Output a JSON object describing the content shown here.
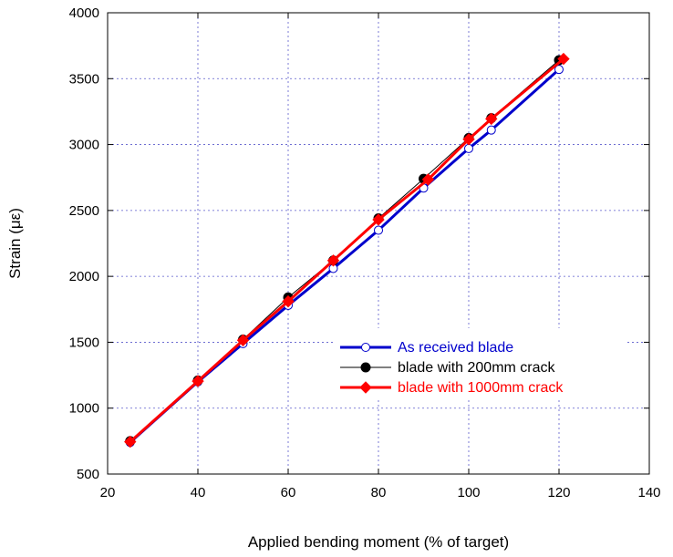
{
  "chart_data": {
    "type": "line",
    "xlabel": "Applied bending moment (% of target)",
    "ylabel": "Strain (με)",
    "xlim": [
      20,
      140
    ],
    "ylim": [
      500,
      4000
    ],
    "xticks": [
      20,
      40,
      60,
      80,
      100,
      120,
      140
    ],
    "yticks": [
      500,
      1000,
      1500,
      2000,
      2500,
      3000,
      3500,
      4000
    ],
    "grid": true,
    "legend_position": "lower-right",
    "series": [
      {
        "name": "As received blade",
        "color": "#0000cc",
        "marker": "open-circle",
        "x": [
          25,
          40,
          50,
          60,
          70,
          80,
          90,
          100,
          105,
          120
        ],
        "y": [
          740,
          1200,
          1490,
          1780,
          2060,
          2350,
          2670,
          2970,
          3110,
          3570
        ]
      },
      {
        "name": "blade with 200mm crack",
        "color": "#000000",
        "marker": "filled-circle",
        "x": [
          25,
          40,
          50,
          60,
          70,
          80,
          90,
          100,
          105,
          120
        ],
        "y": [
          750,
          1210,
          1520,
          1840,
          2120,
          2440,
          2740,
          3050,
          3200,
          3640
        ]
      },
      {
        "name": "blade with 1000mm crack",
        "color": "#ff0000",
        "marker": "filled-diamond",
        "x": [
          25,
          40,
          50,
          60,
          70,
          80,
          91,
          100,
          105,
          121
        ],
        "y": [
          745,
          1205,
          1515,
          1810,
          2120,
          2430,
          2735,
          3040,
          3195,
          3650
        ]
      }
    ]
  }
}
